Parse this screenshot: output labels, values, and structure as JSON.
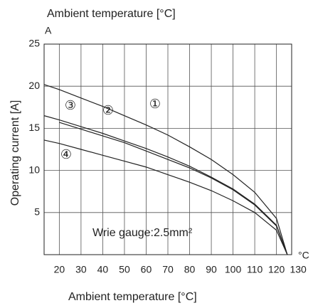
{
  "chart_data": {
    "type": "line",
    "title": "Ambient temperature [°C]",
    "x_label": "Ambient temperature [°C]",
    "y_label": "Operating current [A]",
    "y_unit": "A",
    "x_unit": "°C",
    "annotation": "Wrie gauge:2.5mm²",
    "x": [
      13,
      20,
      30,
      40,
      50,
      60,
      70,
      80,
      90,
      100,
      110,
      120,
      125
    ],
    "series": [
      {
        "name": "①",
        "color": "#222222",
        "values": [
          20.2,
          19.6,
          18.6,
          17.6,
          16.5,
          15.4,
          14.2,
          12.8,
          11.3,
          9.5,
          7.4,
          4.3,
          0
        ]
      },
      {
        "name": "②",
        "color": "#222222",
        "values": [
          16.5,
          16.0,
          15.2,
          14.4,
          13.5,
          12.6,
          11.6,
          10.5,
          9.2,
          7.8,
          6.0,
          3.5,
          0
        ]
      },
      {
        "name": "③",
        "color": "#222222",
        "values": [
          null,
          15.7,
          14.9,
          14.1,
          13.3,
          12.3,
          11.3,
          10.3,
          9.1,
          7.7,
          5.9,
          3.4,
          0
        ]
      },
      {
        "name": "④",
        "color": "#222222",
        "values": [
          13.6,
          13.2,
          12.5,
          11.8,
          11.1,
          10.4,
          9.5,
          8.6,
          7.6,
          6.4,
          5.0,
          2.9,
          0
        ]
      }
    ],
    "xlim": [
      13,
      127
    ],
    "xticks": [
      20,
      30,
      40,
      50,
      60,
      70,
      80,
      90,
      100,
      110,
      120,
      130
    ],
    "ylim": [
      0,
      25
    ],
    "yticks": [
      5,
      10,
      15,
      20,
      25
    ],
    "grid": true
  }
}
